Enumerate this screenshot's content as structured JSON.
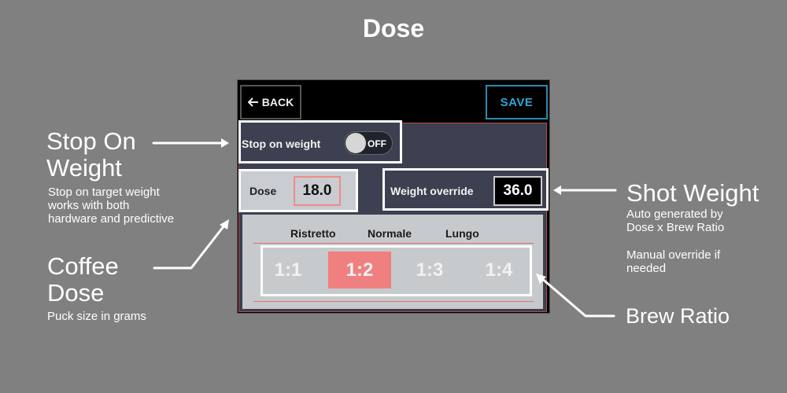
{
  "title": "Dose",
  "device": {
    "back_label": "BACK",
    "save_label": "SAVE",
    "stop_on_weight": {
      "label": "Stop on weight",
      "toggle_state": "OFF"
    },
    "dose": {
      "label": "Dose",
      "value": "18.0"
    },
    "weight_override": {
      "label": "Weight override",
      "value": "36.0"
    },
    "ratio_names": [
      "Ristretto",
      "Normale",
      "Lungo"
    ],
    "ratios": [
      {
        "label": "1:1",
        "selected": false
      },
      {
        "label": "1:2",
        "selected": true
      },
      {
        "label": "1:3",
        "selected": false
      },
      {
        "label": "1:4",
        "selected": false
      }
    ]
  },
  "annotations": {
    "stop_on_weight": {
      "heading": "Stop On Weight",
      "description": "Stop on target weight works with both hardware and predictive"
    },
    "coffee_dose": {
      "heading": "Coffee Dose",
      "description": "Puck size in grams"
    },
    "shot_weight": {
      "heading": "Shot Weight",
      "description_1": "Auto generated by Dose x Brew Ratio",
      "description_2": "Manual override if needed"
    },
    "brew_ratio": {
      "heading": "Brew Ratio"
    }
  },
  "colors": {
    "background": "#808080",
    "accent_pink": "#f07f80",
    "save_blue": "#2ea6d6",
    "panel_dark": "#3c4050"
  }
}
